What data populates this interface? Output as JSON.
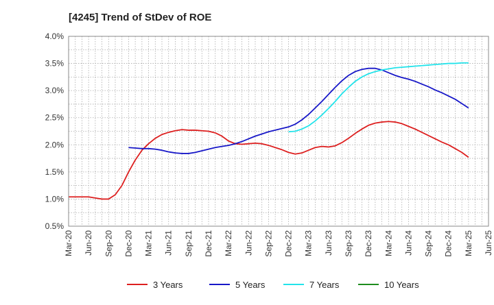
{
  "chart_data": {
    "type": "line",
    "title": "[4245]  Trend of StDev of ROE",
    "xlabel": "",
    "ylabel": "",
    "x_ticks": [
      "Mar-20",
      "Jun-20",
      "Sep-20",
      "Dec-20",
      "Mar-21",
      "Jun-21",
      "Sep-21",
      "Dec-21",
      "Mar-22",
      "Jun-22",
      "Sep-22",
      "Dec-22",
      "Mar-23",
      "Jun-23",
      "Sep-23",
      "Dec-23",
      "Mar-24",
      "Jun-24",
      "Sep-24",
      "Dec-24",
      "Mar-25",
      "Jun-25"
    ],
    "y_ticks": [
      "0.5%",
      "1.0%",
      "1.5%",
      "2.0%",
      "2.5%",
      "3.0%",
      "3.5%",
      "4.0%"
    ],
    "ylim": [
      0.5,
      4.0
    ],
    "grid": true,
    "legend_position": "bottom",
    "series": [
      {
        "name": "3 Years",
        "color": "#dd1f1f",
        "points": [
          [
            "Mar-20",
            1.04
          ],
          [
            "Apr-20",
            1.04
          ],
          [
            "May-20",
            1.04
          ],
          [
            "Jun-20",
            1.04
          ],
          [
            "Jul-20",
            1.02
          ],
          [
            "Aug-20",
            1.0
          ],
          [
            "Sep-20",
            1.0
          ],
          [
            "Oct-20",
            1.08
          ],
          [
            "Nov-20",
            1.25
          ],
          [
            "Dec-20",
            1.5
          ],
          [
            "Jan-21",
            1.72
          ],
          [
            "Feb-21",
            1.9
          ],
          [
            "Mar-21",
            2.02
          ],
          [
            "Apr-21",
            2.12
          ],
          [
            "May-21",
            2.19
          ],
          [
            "Jun-21",
            2.23
          ],
          [
            "Jul-21",
            2.26
          ],
          [
            "Aug-21",
            2.28
          ],
          [
            "Sep-21",
            2.27
          ],
          [
            "Oct-21",
            2.27
          ],
          [
            "Nov-21",
            2.26
          ],
          [
            "Dec-21",
            2.25
          ],
          [
            "Jan-22",
            2.22
          ],
          [
            "Feb-22",
            2.16
          ],
          [
            "Mar-22",
            2.07
          ],
          [
            "Apr-22",
            2.02
          ],
          [
            "May-22",
            2.01
          ],
          [
            "Jun-22",
            2.02
          ],
          [
            "Jul-22",
            2.03
          ],
          [
            "Aug-22",
            2.02
          ],
          [
            "Sep-22",
            1.99
          ],
          [
            "Oct-22",
            1.95
          ],
          [
            "Nov-22",
            1.91
          ],
          [
            "Dec-22",
            1.86
          ],
          [
            "Jan-23",
            1.83
          ],
          [
            "Feb-23",
            1.85
          ],
          [
            "Mar-23",
            1.9
          ],
          [
            "Apr-23",
            1.95
          ],
          [
            "May-23",
            1.97
          ],
          [
            "Jun-23",
            1.96
          ],
          [
            "Jul-23",
            1.98
          ],
          [
            "Aug-23",
            2.04
          ],
          [
            "Sep-23",
            2.12
          ],
          [
            "Oct-23",
            2.21
          ],
          [
            "Nov-23",
            2.29
          ],
          [
            "Dec-23",
            2.36
          ],
          [
            "Jan-24",
            2.4
          ],
          [
            "Feb-24",
            2.42
          ],
          [
            "Mar-24",
            2.43
          ],
          [
            "Apr-24",
            2.42
          ],
          [
            "May-24",
            2.39
          ],
          [
            "Jun-24",
            2.34
          ],
          [
            "Jul-24",
            2.29
          ],
          [
            "Aug-24",
            2.23
          ],
          [
            "Sep-24",
            2.17
          ],
          [
            "Oct-24",
            2.11
          ],
          [
            "Nov-24",
            2.05
          ],
          [
            "Dec-24",
            2.0
          ],
          [
            "Jan-25",
            1.93
          ],
          [
            "Feb-25",
            1.86
          ],
          [
            "Mar-25",
            1.77
          ]
        ]
      },
      {
        "name": "5 Years",
        "color": "#1717c8",
        "points": [
          [
            "Dec-20",
            1.95
          ],
          [
            "Jan-21",
            1.94
          ],
          [
            "Feb-21",
            1.93
          ],
          [
            "Mar-21",
            1.93
          ],
          [
            "Apr-21",
            1.92
          ],
          [
            "May-21",
            1.9
          ],
          [
            "Jun-21",
            1.87
          ],
          [
            "Jul-21",
            1.85
          ],
          [
            "Aug-21",
            1.84
          ],
          [
            "Sep-21",
            1.84
          ],
          [
            "Oct-21",
            1.86
          ],
          [
            "Nov-21",
            1.89
          ],
          [
            "Dec-21",
            1.92
          ],
          [
            "Jan-22",
            1.95
          ],
          [
            "Feb-22",
            1.97
          ],
          [
            "Mar-22",
            1.99
          ],
          [
            "Apr-22",
            2.02
          ],
          [
            "May-22",
            2.06
          ],
          [
            "Jun-22",
            2.11
          ],
          [
            "Jul-22",
            2.16
          ],
          [
            "Aug-22",
            2.2
          ],
          [
            "Sep-22",
            2.24
          ],
          [
            "Oct-22",
            2.27
          ],
          [
            "Nov-22",
            2.3
          ],
          [
            "Dec-22",
            2.33
          ],
          [
            "Jan-23",
            2.38
          ],
          [
            "Feb-23",
            2.46
          ],
          [
            "Mar-23",
            2.56
          ],
          [
            "Apr-23",
            2.68
          ],
          [
            "May-23",
            2.8
          ],
          [
            "Jun-23",
            2.93
          ],
          [
            "Jul-23",
            3.06
          ],
          [
            "Aug-23",
            3.18
          ],
          [
            "Sep-23",
            3.28
          ],
          [
            "Oct-23",
            3.35
          ],
          [
            "Nov-23",
            3.39
          ],
          [
            "Dec-23",
            3.41
          ],
          [
            "Jan-24",
            3.41
          ],
          [
            "Feb-24",
            3.38
          ],
          [
            "Mar-24",
            3.33
          ],
          [
            "Apr-24",
            3.28
          ],
          [
            "May-24",
            3.24
          ],
          [
            "Jun-24",
            3.21
          ],
          [
            "Jul-24",
            3.17
          ],
          [
            "Aug-24",
            3.12
          ],
          [
            "Sep-24",
            3.07
          ],
          [
            "Oct-24",
            3.01
          ],
          [
            "Nov-24",
            2.96
          ],
          [
            "Dec-24",
            2.9
          ],
          [
            "Jan-25",
            2.84
          ],
          [
            "Feb-25",
            2.76
          ],
          [
            "Mar-25",
            2.68
          ]
        ]
      },
      {
        "name": "7 Years",
        "color": "#22e3ea",
        "points": [
          [
            "Dec-22",
            2.24
          ],
          [
            "Jan-23",
            2.25
          ],
          [
            "Feb-23",
            2.29
          ],
          [
            "Mar-23",
            2.35
          ],
          [
            "Apr-23",
            2.44
          ],
          [
            "May-23",
            2.55
          ],
          [
            "Jun-23",
            2.67
          ],
          [
            "Jul-23",
            2.8
          ],
          [
            "Aug-23",
            2.94
          ],
          [
            "Sep-23",
            3.06
          ],
          [
            "Oct-23",
            3.17
          ],
          [
            "Nov-23",
            3.25
          ],
          [
            "Dec-23",
            3.31
          ],
          [
            "Jan-24",
            3.35
          ],
          [
            "Feb-24",
            3.38
          ],
          [
            "Mar-24",
            3.4
          ],
          [
            "Apr-24",
            3.42
          ],
          [
            "May-24",
            3.43
          ],
          [
            "Jun-24",
            3.44
          ],
          [
            "Jul-24",
            3.45
          ],
          [
            "Aug-24",
            3.46
          ],
          [
            "Sep-24",
            3.47
          ],
          [
            "Oct-24",
            3.48
          ],
          [
            "Nov-24",
            3.49
          ],
          [
            "Dec-24",
            3.5
          ],
          [
            "Jan-25",
            3.5
          ],
          [
            "Feb-25",
            3.51
          ],
          [
            "Mar-25",
            3.51
          ]
        ]
      },
      {
        "name": "10 Years",
        "color": "#1e8c1e",
        "points": []
      }
    ]
  }
}
